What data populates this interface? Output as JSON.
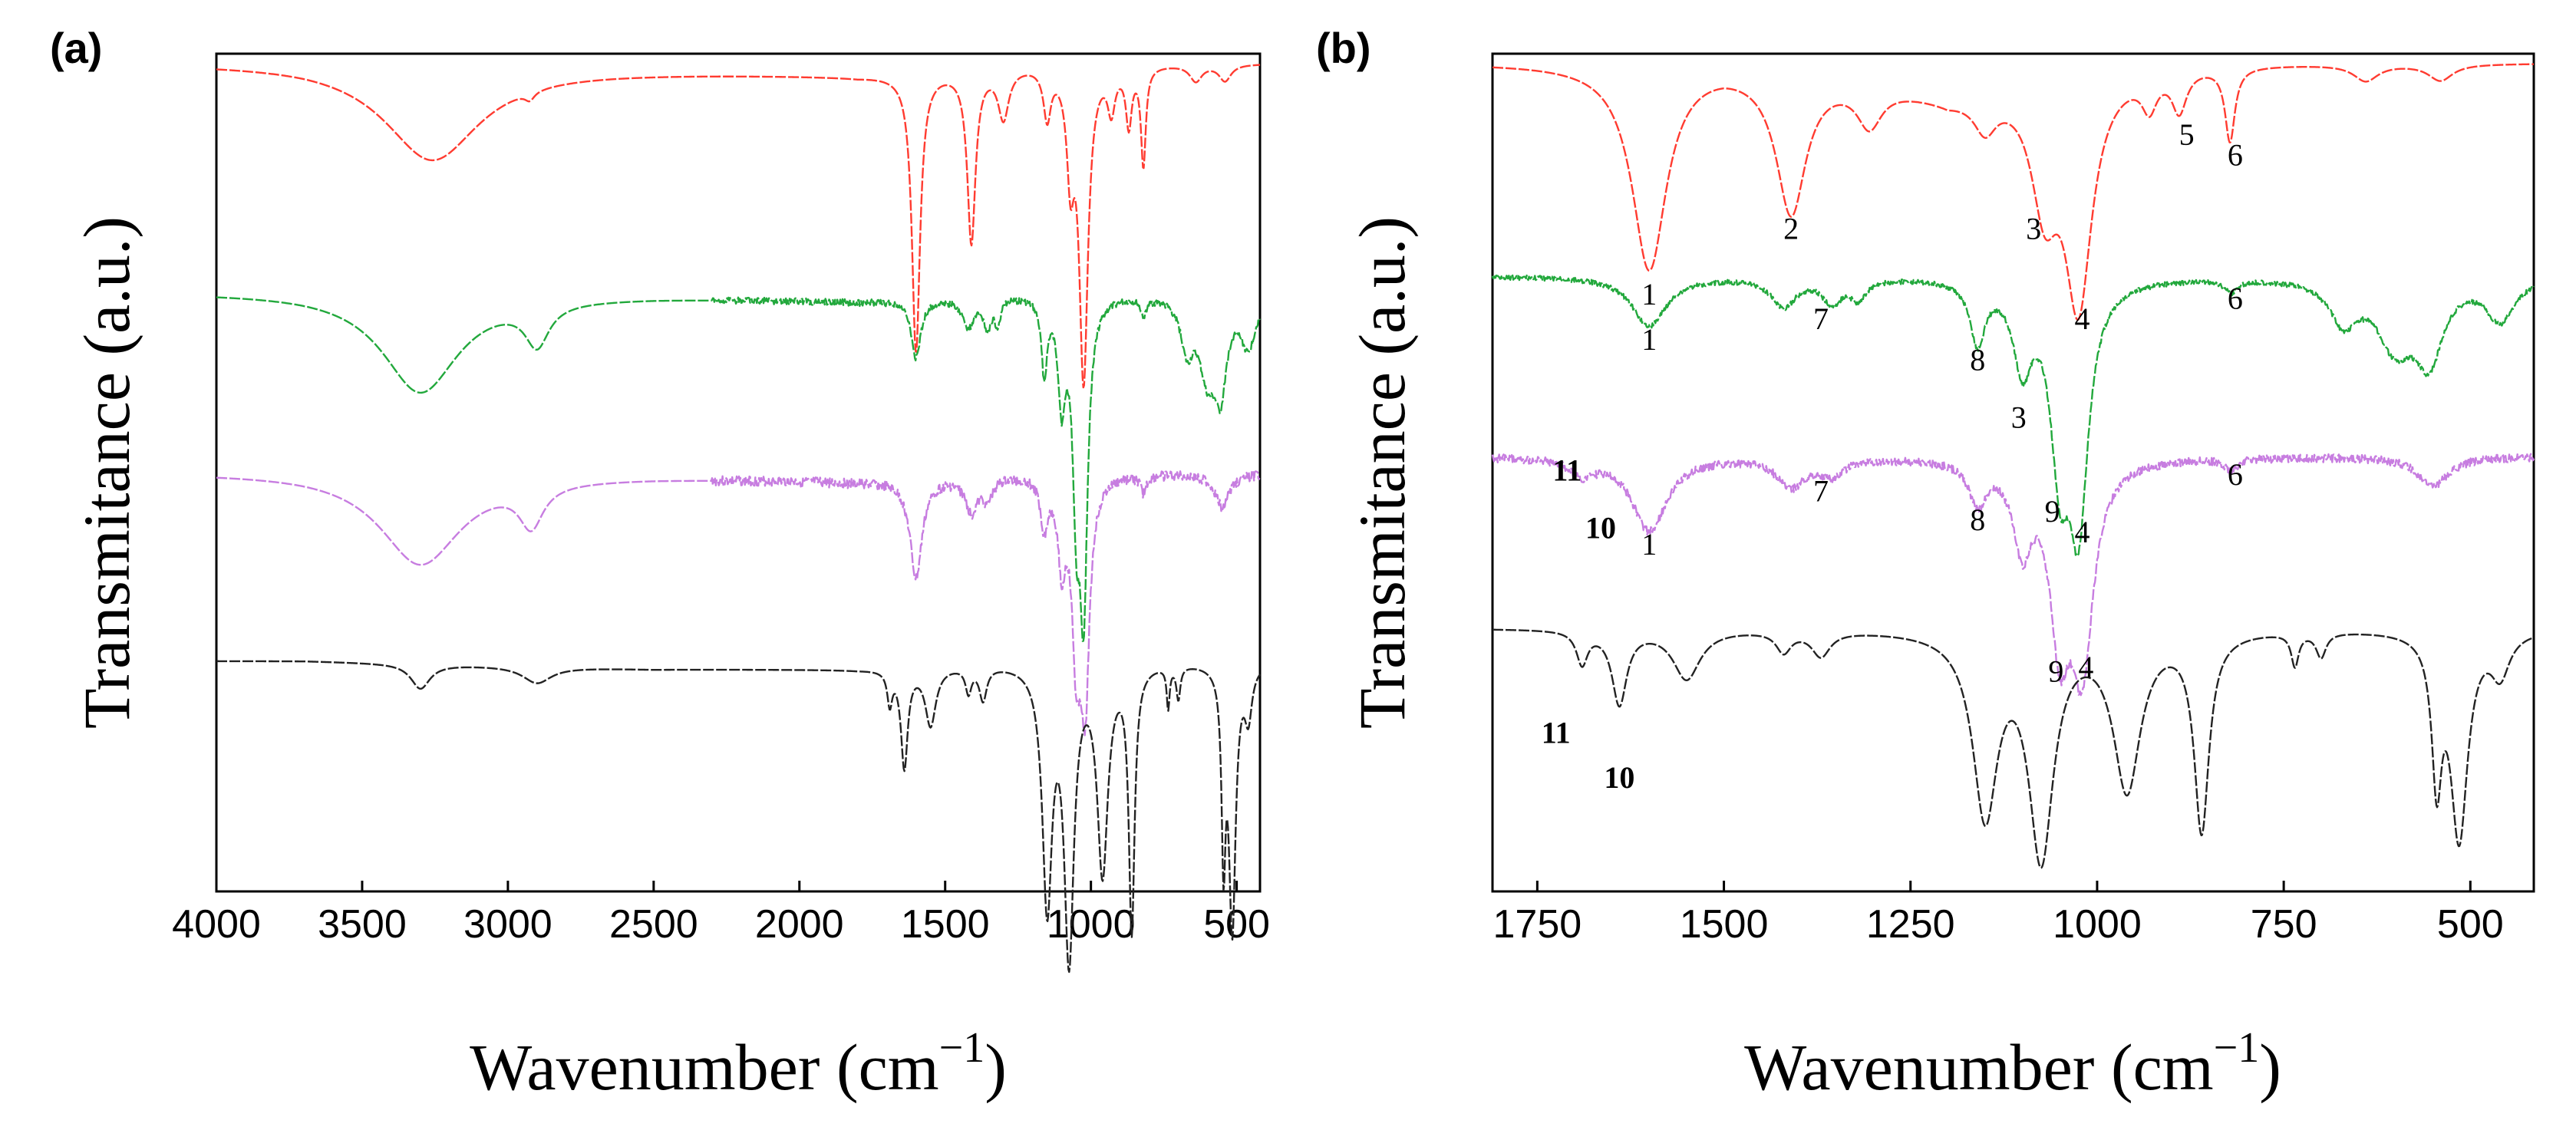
{
  "chart_data": [
    {
      "panel_label": "(a)",
      "type": "line",
      "xlabel": "Wavenumber (cm",
      "xlabel_sup": "−1",
      "xlabel_tail": ")",
      "ylabel": "Transmitance (a.u.)",
      "xlim": [
        4000,
        420
      ],
      "x_reversed": true,
      "y_ticks": false,
      "grid": false,
      "x_ticks": [
        4000,
        3500,
        3000,
        2500,
        2000,
        1500,
        1000,
        500
      ],
      "x_tick_labels": [
        "4000",
        "3500",
        "3000",
        "2500",
        "2000",
        "1500",
        "1000",
        "500"
      ],
      "series": [
        {
          "color": "#ff3b30",
          "offset": 0.0,
          "noise": 0.0,
          "baseline": [
            [
              4000,
              0.0
            ],
            [
              3700,
              0.0
            ],
            [
              2500,
              0.01
            ],
            [
              1800,
              0.015
            ],
            [
              1200,
              0.0
            ],
            [
              420,
              0.0
            ]
          ],
          "bands": [
            [
              3260,
              200,
              0.115
            ],
            [
              2925,
              20,
              0.01
            ],
            [
              1600,
              17,
              0.34
            ],
            [
              1410,
              17,
              0.21
            ],
            [
              1300,
              22,
              0.06
            ],
            [
              1150,
              15,
              0.06
            ],
            [
              1070,
              15,
              0.12
            ],
            [
              1025,
              18,
              0.38
            ],
            [
              930,
              15,
              0.05
            ],
            [
              870,
              12,
              0.07
            ],
            [
              820,
              10,
              0.12
            ],
            [
              640,
              25,
              0.02
            ],
            [
              540,
              25,
              0.02
            ]
          ]
        },
        {
          "color": "#22a83c",
          "offset": 0.28,
          "noise": 0.004,
          "baseline": [
            [
              4000,
              0.0
            ],
            [
              3700,
              0.0
            ],
            [
              2500,
              0.005
            ],
            [
              1800,
              0.01
            ],
            [
              1200,
              0.0
            ],
            [
              420,
              0.0
            ]
          ],
          "bands": [
            [
              3300,
              160,
              0.12
            ],
            [
              2900,
              50,
              0.05
            ],
            [
              1600,
              20,
              0.07
            ],
            [
              1420,
              25,
              0.035
            ],
            [
              1355,
              15,
              0.035
            ],
            [
              1320,
              12,
              0.03
            ],
            [
              1160,
              12,
              0.09
            ],
            [
              1100,
              15,
              0.12
            ],
            [
              1050,
              15,
              0.22
            ],
            [
              1025,
              16,
              0.36
            ],
            [
              820,
              12,
              0.02
            ],
            [
              670,
              25,
              0.06
            ],
            [
              600,
              35,
              0.09
            ],
            [
              555,
              25,
              0.1
            ],
            [
              460,
              30,
              0.06
            ]
          ]
        },
        {
          "color": "#c77de0",
          "offset": 0.5,
          "noise": 0.006,
          "baseline": [
            [
              4000,
              0.0
            ],
            [
              3700,
              0.0
            ],
            [
              2500,
              0.005
            ],
            [
              1800,
              0.01
            ],
            [
              1200,
              0.0
            ],
            [
              420,
              0.0
            ]
          ],
          "bands": [
            [
              3300,
              170,
              0.11
            ],
            [
              2920,
              50,
              0.05
            ],
            [
              1600,
              25,
              0.12
            ],
            [
              1410,
              25,
              0.04
            ],
            [
              1355,
              20,
              0.025
            ],
            [
              1160,
              15,
              0.06
            ],
            [
              1100,
              15,
              0.1
            ],
            [
              1050,
              18,
              0.2
            ],
            [
              1020,
              18,
              0.26
            ],
            [
              820,
              12,
              0.02
            ],
            [
              550,
              30,
              0.04
            ]
          ]
        },
        {
          "color": "#222222",
          "offset": 0.73,
          "noise": 0.0,
          "baseline": [
            [
              4000,
              0.0
            ],
            [
              3700,
              0.0
            ],
            [
              2500,
              0.01
            ],
            [
              1800,
              0.01
            ],
            [
              1200,
              0.0
            ],
            [
              420,
              0.0
            ]
          ],
          "bands": [
            [
              3300,
              40,
              0.03
            ],
            [
              2900,
              60,
              0.02
            ],
            [
              1690,
              10,
              0.04
            ],
            [
              1640,
              14,
              0.12
            ],
            [
              1550,
              22,
              0.07
            ],
            [
              1420,
              12,
              0.03
            ],
            [
              1370,
              15,
              0.04
            ],
            [
              1150,
              20,
              0.29
            ],
            [
              1075,
              20,
              0.35
            ],
            [
              960,
              22,
              0.25
            ],
            [
              860,
              12,
              0.32
            ],
            [
              735,
              6,
              0.05
            ],
            [
              700,
              8,
              0.04
            ],
            [
              545,
              8,
              0.22
            ],
            [
              515,
              14,
              0.32
            ],
            [
              460,
              15,
              0.06
            ]
          ]
        }
      ],
      "annotations": []
    },
    {
      "panel_label": "(b)",
      "type": "line",
      "xlabel": "Wavenumber (cm",
      "xlabel_sup": "−1",
      "xlabel_tail": ")",
      "ylabel": "Transmitance (a.u.)",
      "xlim": [
        1810,
        415
      ],
      "x_reversed": true,
      "y_ticks": false,
      "grid": false,
      "x_ticks": [
        1750,
        1500,
        1250,
        1000,
        750,
        500
      ],
      "x_tick_labels": [
        "1750",
        "1500",
        "1250",
        "1000",
        "750",
        "500"
      ],
      "series": [
        {
          "color": "#ff3b30",
          "offset": 0.0,
          "noise": 0.0,
          "baseline": [
            [
              1810,
              0.0
            ],
            [
              1500,
              0.0
            ],
            [
              1300,
              0.02
            ],
            [
              1200,
              0.04
            ],
            [
              1100,
              0.02
            ],
            [
              900,
              0.0
            ],
            [
              415,
              0.0
            ]
          ],
          "bands": [
            [
              1600,
              28,
              0.25
            ],
            [
              1410,
              24,
              0.17
            ],
            [
              1305,
              20,
              0.05
            ],
            [
              1150,
              18,
              0.04
            ],
            [
              1070,
              22,
              0.14
            ],
            [
              1025,
              22,
              0.27
            ],
            [
              930,
              12,
              0.04
            ],
            [
              890,
              12,
              0.05
            ],
            [
              822,
              8,
              0.09
            ],
            [
              640,
              20,
              0.02
            ],
            [
              540,
              20,
              0.02
            ]
          ]
        },
        {
          "color": "#22a83c",
          "offset": 0.26,
          "noise": 0.003,
          "baseline": [
            [
              1810,
              0.0
            ],
            [
              1500,
              0.0
            ],
            [
              1250,
              0.0
            ],
            [
              900,
              0.0
            ],
            [
              415,
              0.0
            ]
          ],
          "bands": [
            [
              1600,
              28,
              0.06
            ],
            [
              1420,
              20,
              0.035
            ],
            [
              1355,
              15,
              0.03
            ],
            [
              1320,
              12,
              0.025
            ],
            [
              1160,
              12,
              0.075
            ],
            [
              1100,
              15,
              0.1
            ],
            [
              1050,
              15,
              0.2
            ],
            [
              1025,
              16,
              0.28
            ],
            [
              820,
              10,
              0.015
            ],
            [
              670,
              22,
              0.05
            ],
            [
              600,
              30,
              0.08
            ],
            [
              555,
              22,
              0.09
            ],
            [
              460,
              22,
              0.05
            ]
          ]
        },
        {
          "color": "#c77de0",
          "offset": 0.48,
          "noise": 0.005,
          "baseline": [
            [
              1810,
              0.0
            ],
            [
              1500,
              0.0
            ],
            [
              1250,
              0.0
            ],
            [
              900,
              0.0
            ],
            [
              415,
              0.0
            ]
          ],
          "bands": [
            [
              1690,
              18,
              0.02
            ],
            [
              1600,
              28,
              0.09
            ],
            [
              1410,
              22,
              0.035
            ],
            [
              1355,
              18,
              0.02
            ],
            [
              1160,
              14,
              0.05
            ],
            [
              1100,
              15,
              0.1
            ],
            [
              1050,
              16,
              0.2
            ],
            [
              1020,
              18,
              0.24
            ],
            [
              820,
              10,
              0.015
            ],
            [
              550,
              25,
              0.035
            ]
          ]
        },
        {
          "color": "#222222",
          "offset": 0.69,
          "noise": 0.0,
          "baseline": [
            [
              1810,
              0.0
            ],
            [
              1500,
              0.0
            ],
            [
              1250,
              0.0
            ],
            [
              900,
              0.0
            ],
            [
              415,
              0.0
            ]
          ],
          "bands": [
            [
              1690,
              9,
              0.04
            ],
            [
              1640,
              12,
              0.09
            ],
            [
              1550,
              22,
              0.06
            ],
            [
              1420,
              12,
              0.025
            ],
            [
              1370,
              15,
              0.03
            ],
            [
              1150,
              20,
              0.22
            ],
            [
              1075,
              20,
              0.27
            ],
            [
              960,
              22,
              0.19
            ],
            [
              860,
              12,
              0.24
            ],
            [
              735,
              6,
              0.04
            ],
            [
              700,
              8,
              0.03
            ],
            [
              545,
              8,
              0.17
            ],
            [
              515,
              14,
              0.25
            ],
            [
              460,
              15,
              0.05
            ]
          ]
        }
      ],
      "annotations": [
        {
          "text": "1",
          "x": 1600,
          "y": 0.295,
          "bold": false
        },
        {
          "text": "2",
          "x": 1410,
          "y": 0.215,
          "bold": false
        },
        {
          "text": "3",
          "x": 1085,
          "y": 0.215,
          "bold": false
        },
        {
          "text": "4",
          "x": 1020,
          "y": 0.325,
          "bold": false
        },
        {
          "text": "5",
          "x": 880,
          "y": 0.1,
          "bold": false
        },
        {
          "text": "6",
          "x": 815,
          "y": 0.125,
          "bold": false
        },
        {
          "text": "1",
          "x": 1600,
          "y": 0.35,
          "bold": false
        },
        {
          "text": "7",
          "x": 1370,
          "y": 0.325,
          "bold": false
        },
        {
          "text": "8",
          "x": 1160,
          "y": 0.375,
          "bold": false
        },
        {
          "text": "3",
          "x": 1105,
          "y": 0.445,
          "bold": false
        },
        {
          "text": "6",
          "x": 815,
          "y": 0.3,
          "bold": false
        },
        {
          "text": "11",
          "x": 1710,
          "y": 0.51,
          "bold": true
        },
        {
          "text": "10",
          "x": 1665,
          "y": 0.58,
          "bold": true
        },
        {
          "text": "1",
          "x": 1600,
          "y": 0.6,
          "bold": false
        },
        {
          "text": "7",
          "x": 1370,
          "y": 0.535,
          "bold": false
        },
        {
          "text": "8",
          "x": 1160,
          "y": 0.57,
          "bold": false
        },
        {
          "text": "9",
          "x": 1060,
          "y": 0.56,
          "bold": false
        },
        {
          "text": "4",
          "x": 1020,
          "y": 0.585,
          "bold": false
        },
        {
          "text": "6",
          "x": 815,
          "y": 0.515,
          "bold": false
        },
        {
          "text": "9",
          "x": 1055,
          "y": 0.755,
          "bold": false
        },
        {
          "text": "4",
          "x": 1015,
          "y": 0.75,
          "bold": false
        },
        {
          "text": "11",
          "x": 1725,
          "y": 0.83,
          "bold": true
        },
        {
          "text": "10",
          "x": 1640,
          "y": 0.885,
          "bold": true
        }
      ]
    }
  ]
}
